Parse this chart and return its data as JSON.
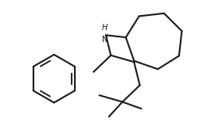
{
  "bg_color": "#ffffff",
  "line_color": "#1a1a1a",
  "line_width": 1.5,
  "figsize": [
    2.7,
    1.64
  ],
  "dpi": 100,
  "nh_fontsize": 7.5
}
